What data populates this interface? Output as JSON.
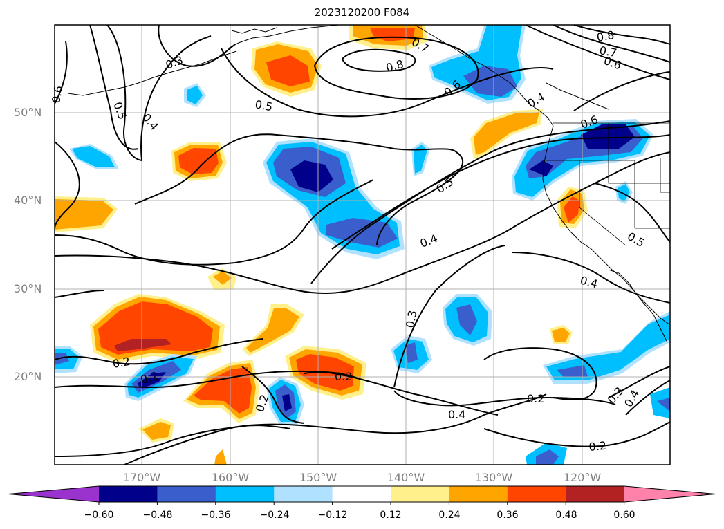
{
  "title": "2023120200 F084",
  "lat_labels": [
    "50°N",
    "40°N",
    "30°N",
    "20°N"
  ],
  "lon_labels": [
    "170°W",
    "160°W",
    "150°W",
    "140°W",
    "130°W",
    "120°W"
  ],
  "contour_labels": {
    "c1": "0.3",
    "c2": "0.5",
    "c3": "0.4",
    "c4": "0.5",
    "c5": "0.6",
    "c6": "0.8",
    "c7": "0.7",
    "c8": "0.6",
    "c9": "0.4",
    "c10": "0.8",
    "c11": "0.7",
    "c12": "0.6",
    "c13": "0.6",
    "c14": "0.5",
    "c15": "0.4",
    "c16": "0.3",
    "c17": "0.2",
    "c18": "0.2",
    "c19": "0.2",
    "c20": "0.2",
    "c21": "0.4",
    "c22": "0.2",
    "c23": "0.2",
    "c24": "0.3",
    "c25": "0.4",
    "c26": "0.5",
    "c27": "0.4"
  },
  "colorbar": {
    "colors": [
      "#9a32cd",
      "#00008b",
      "#3a5fcd",
      "#00bfff",
      "#b0e2ff",
      "#ffffff",
      "#fff08c",
      "#ffa500",
      "#ff4500",
      "#b22222",
      "#ff82ab"
    ],
    "tick_labels": [
      "−0.60",
      "−0.48",
      "−0.36",
      "−0.24",
      "−0.12",
      "0.12",
      "0.24",
      "0.36",
      "0.48",
      "0.60"
    ]
  }
}
